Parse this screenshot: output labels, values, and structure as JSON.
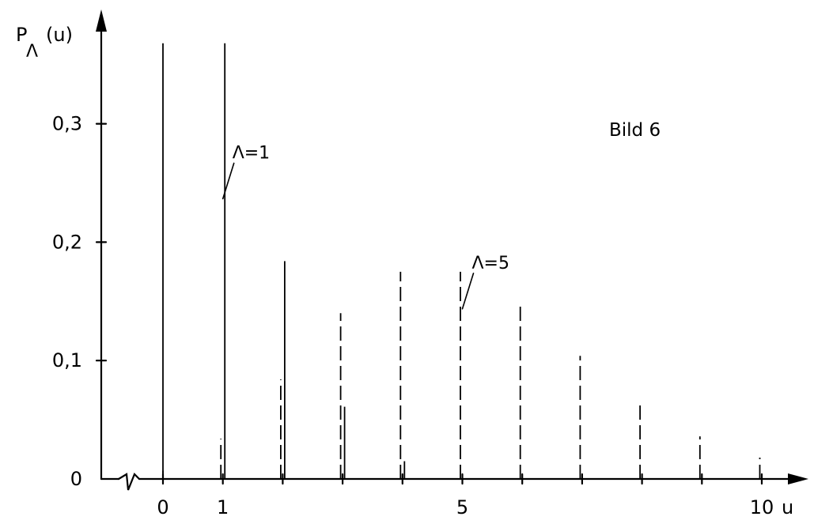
{
  "chart_data": {
    "type": "bar",
    "title": "Bild 6",
    "ylabel_main": "P",
    "ylabel_sub": "Λ",
    "ylabel_arg": "(u)",
    "xlabel": "u",
    "xlim": [
      0,
      10
    ],
    "ylim": [
      0,
      0.4
    ],
    "grid": false,
    "x_ticks": [
      {
        "value": 0,
        "label": "0"
      },
      {
        "value": 1,
        "label": "1"
      },
      {
        "value": 5,
        "label": "5"
      },
      {
        "value": 10,
        "label": "10"
      }
    ],
    "y_ticks": [
      {
        "value": 0,
        "label": "0"
      },
      {
        "value": 0.1,
        "label": "0,1"
      },
      {
        "value": 0.2,
        "label": "0,2"
      },
      {
        "value": 0.3,
        "label": "0,3"
      }
    ],
    "series": [
      {
        "style": "solid",
        "x": [
          0,
          1,
          2,
          3,
          4
        ],
        "values": [
          0.368,
          0.368,
          0.184,
          0.061,
          0.015
        ]
      },
      {
        "style": "dashed",
        "x": [
          0,
          1,
          2,
          3,
          4,
          5,
          6,
          7,
          8,
          9,
          10
        ],
        "values": [
          0.007,
          0.034,
          0.084,
          0.14,
          0.175,
          0.175,
          0.146,
          0.104,
          0.065,
          0.036,
          0.018
        ]
      }
    ],
    "annotations": [
      {
        "text": "Λ=1",
        "x": 1,
        "y": 0.24
      },
      {
        "text": "Λ=5",
        "x": 5,
        "y": 0.147
      }
    ]
  }
}
